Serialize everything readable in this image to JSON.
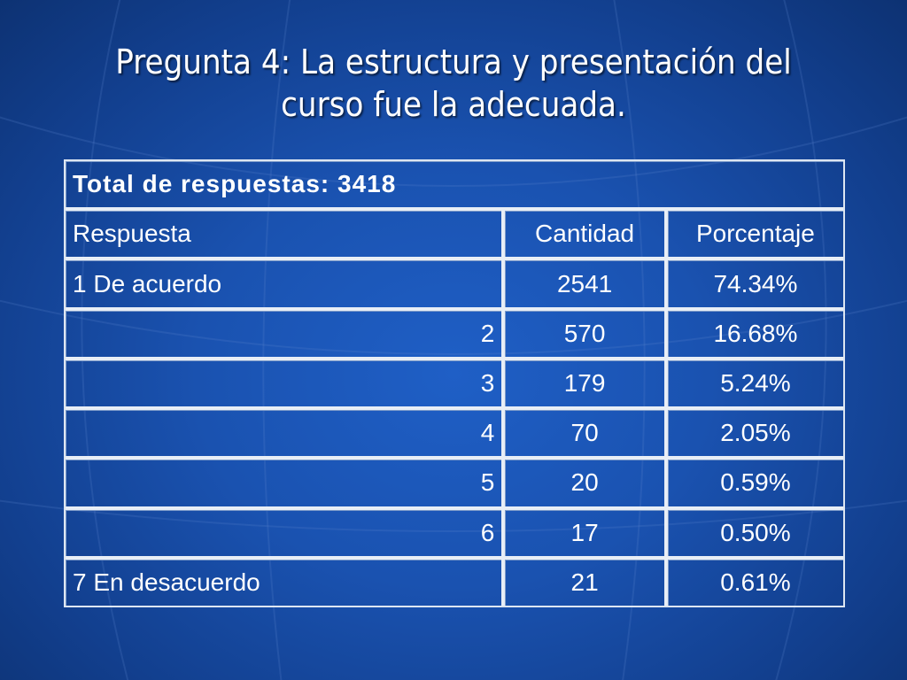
{
  "slide": {
    "title_line1": "Pregunta 4: La estructura y presentación del",
    "title_line2": "curso fue la adecuada."
  },
  "table": {
    "total_label": "Total de respuestas: 3418",
    "headers": {
      "respuesta": "Respuesta",
      "cantidad": "Cantidad",
      "porcentaje": "Porcentaje"
    },
    "rows": [
      {
        "respuesta": "1 De acuerdo",
        "cantidad": "2541",
        "porcentaje": "74.34%"
      },
      {
        "respuesta": "2",
        "cantidad": "570",
        "porcentaje": "16.68%"
      },
      {
        "respuesta": "3",
        "cantidad": "179",
        "porcentaje": "5.24%"
      },
      {
        "respuesta": "4",
        "cantidad": "70",
        "porcentaje": "2.05%"
      },
      {
        "respuesta": "5",
        "cantidad": "20",
        "porcentaje": "0.59%"
      },
      {
        "respuesta": "6",
        "cantidad": "17",
        "porcentaje": "0.50%"
      },
      {
        "respuesta": "7 En desacuerdo",
        "cantidad": "21",
        "porcentaje": "0.61%"
      }
    ]
  },
  "colors": {
    "background": "#1a52b0",
    "text": "#ffffff",
    "grid": "#e8eef6"
  }
}
